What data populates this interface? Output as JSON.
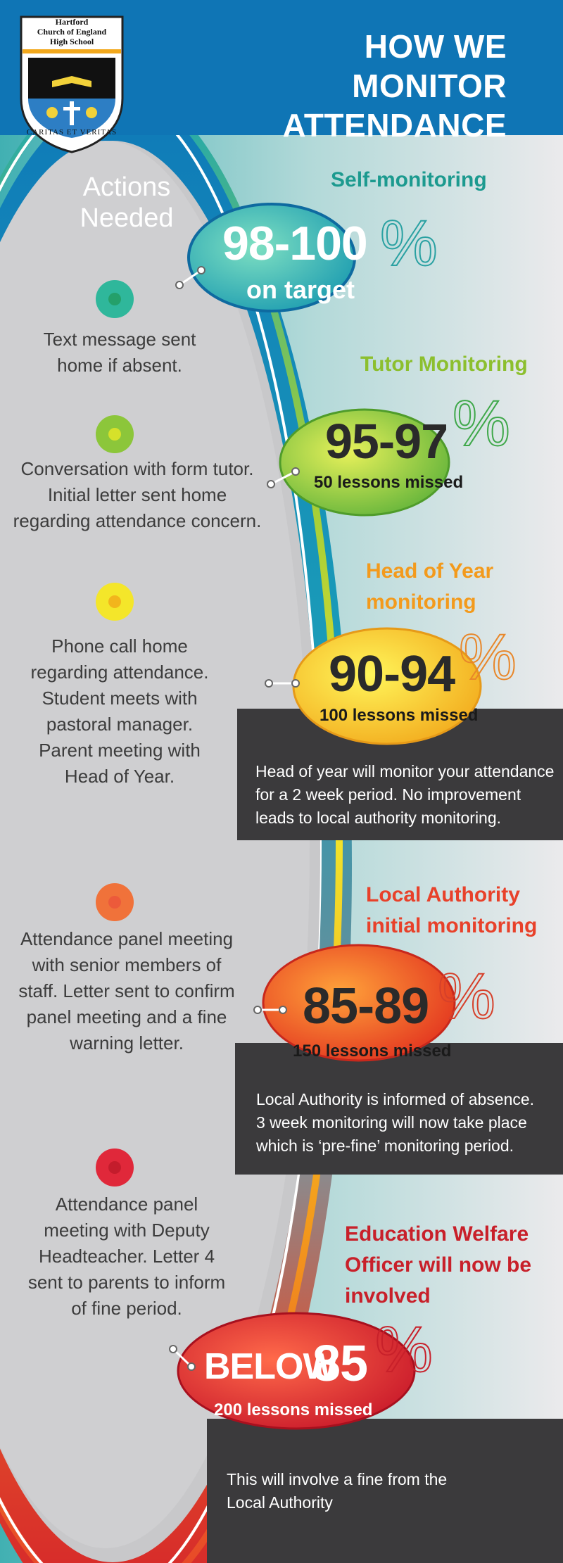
{
  "header": {
    "title_line1": "HOW WE MONITOR",
    "title_line2": "ATTENDANCE",
    "crest": {
      "school_line1": "Hartford",
      "school_line2": "Church of England",
      "school_line3": "High School",
      "motto": "CARITAS ET VERITAS"
    }
  },
  "actions_heading": {
    "line1": "Actions",
    "line2": "Needed"
  },
  "levels": [
    {
      "title": "Self-monitoring",
      "range": "98-100",
      "sub": "on target",
      "percent": "%",
      "title_color": "#1c9a8f",
      "actions": [
        "Text message sent",
        "home if absent."
      ]
    },
    {
      "title": "Tutor Monitoring",
      "range": "95-97",
      "sub": "50 lessons missed",
      "percent": "%",
      "title_color": "#8cbf2e",
      "actions": [
        "Conversation with form tutor.",
        "Initial letter sent home",
        "regarding attendance concern."
      ]
    },
    {
      "title_line1": "Head of Year",
      "title_line2": "monitoring",
      "range": "90-94",
      "sub": "100 lessons missed",
      "percent": "%",
      "title_color": "#f39a1c",
      "actions": [
        "Phone call home",
        "regarding attendance.",
        "Student meets with",
        "pastoral manager.",
        "Parent meeting with",
        "Head of Year."
      ],
      "info": [
        "Head of year will monitor your attendance",
        "for a 2 week period.  No improvement",
        "leads to local authority monitoring."
      ]
    },
    {
      "title_line1": "Local Authority",
      "title_line2": "initial monitoring",
      "range": "85-89",
      "sub": "150 lessons missed",
      "percent": "%",
      "title_color": "#e8412a",
      "actions": [
        "Attendance panel meeting",
        "with senior members of",
        "staff. Letter sent to confirm",
        "panel meeting and a fine",
        "warning letter."
      ],
      "info": [
        "Local Authority is informed of absence.",
        "3 week monitoring will now take place",
        "which is ‘pre-fine’ monitoring period."
      ]
    },
    {
      "title_line1": "Education Welfare",
      "title_line2": "Officer will now be",
      "title_line3": "involved",
      "range_word": "BELOW",
      "range": "85",
      "sub": "200 lessons missed",
      "percent": "%",
      "title_color": "#c8202a",
      "actions": [
        "Attendance panel",
        "meeting with Deputy",
        "Headteacher. Letter 4",
        "sent to parents to inform",
        "of fine period."
      ],
      "info": [
        "This will involve a fine from the",
        "Local Authority"
      ]
    }
  ]
}
